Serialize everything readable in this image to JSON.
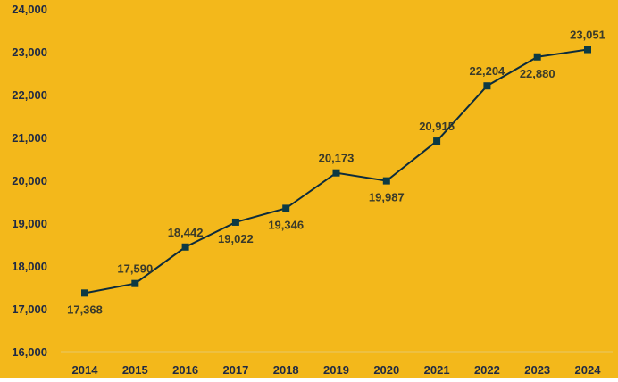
{
  "colors": {
    "background": "#F3B81B",
    "line": "#0C2B3C",
    "marker": "#0C3A44",
    "baseline": "#E7C96A"
  },
  "chart_data": {
    "type": "line",
    "title": "",
    "xlabel": "",
    "ylabel": "",
    "x": [
      "2014",
      "2015",
      "2016",
      "2017",
      "2018",
      "2019",
      "2020",
      "2021",
      "2022",
      "2023",
      "2024"
    ],
    "series": [
      {
        "values": [
          17368,
          17590,
          18442,
          19022,
          19346,
          20173,
          19987,
          20915,
          22204,
          22880,
          23051
        ],
        "labels": [
          "17,368",
          "17,590",
          "18,442",
          "19,022",
          "19,346",
          "20,173",
          "19,987",
          "20,915",
          "22,204",
          "22,880",
          "23,051"
        ],
        "label_side": [
          "below",
          "above",
          "above",
          "below",
          "below",
          "above",
          "below",
          "above",
          "above",
          "below",
          "above"
        ],
        "marker": "square"
      }
    ],
    "ylim": [
      16000,
      24000
    ],
    "yticks": [
      16000,
      17000,
      18000,
      19000,
      20000,
      21000,
      22000,
      23000,
      24000
    ],
    "ytick_labels": [
      "16,000",
      "17,000",
      "18,000",
      "19,000",
      "20,000",
      "21,000",
      "22,000",
      "23,000",
      "24,000"
    ],
    "grid": false,
    "legend": "none"
  }
}
